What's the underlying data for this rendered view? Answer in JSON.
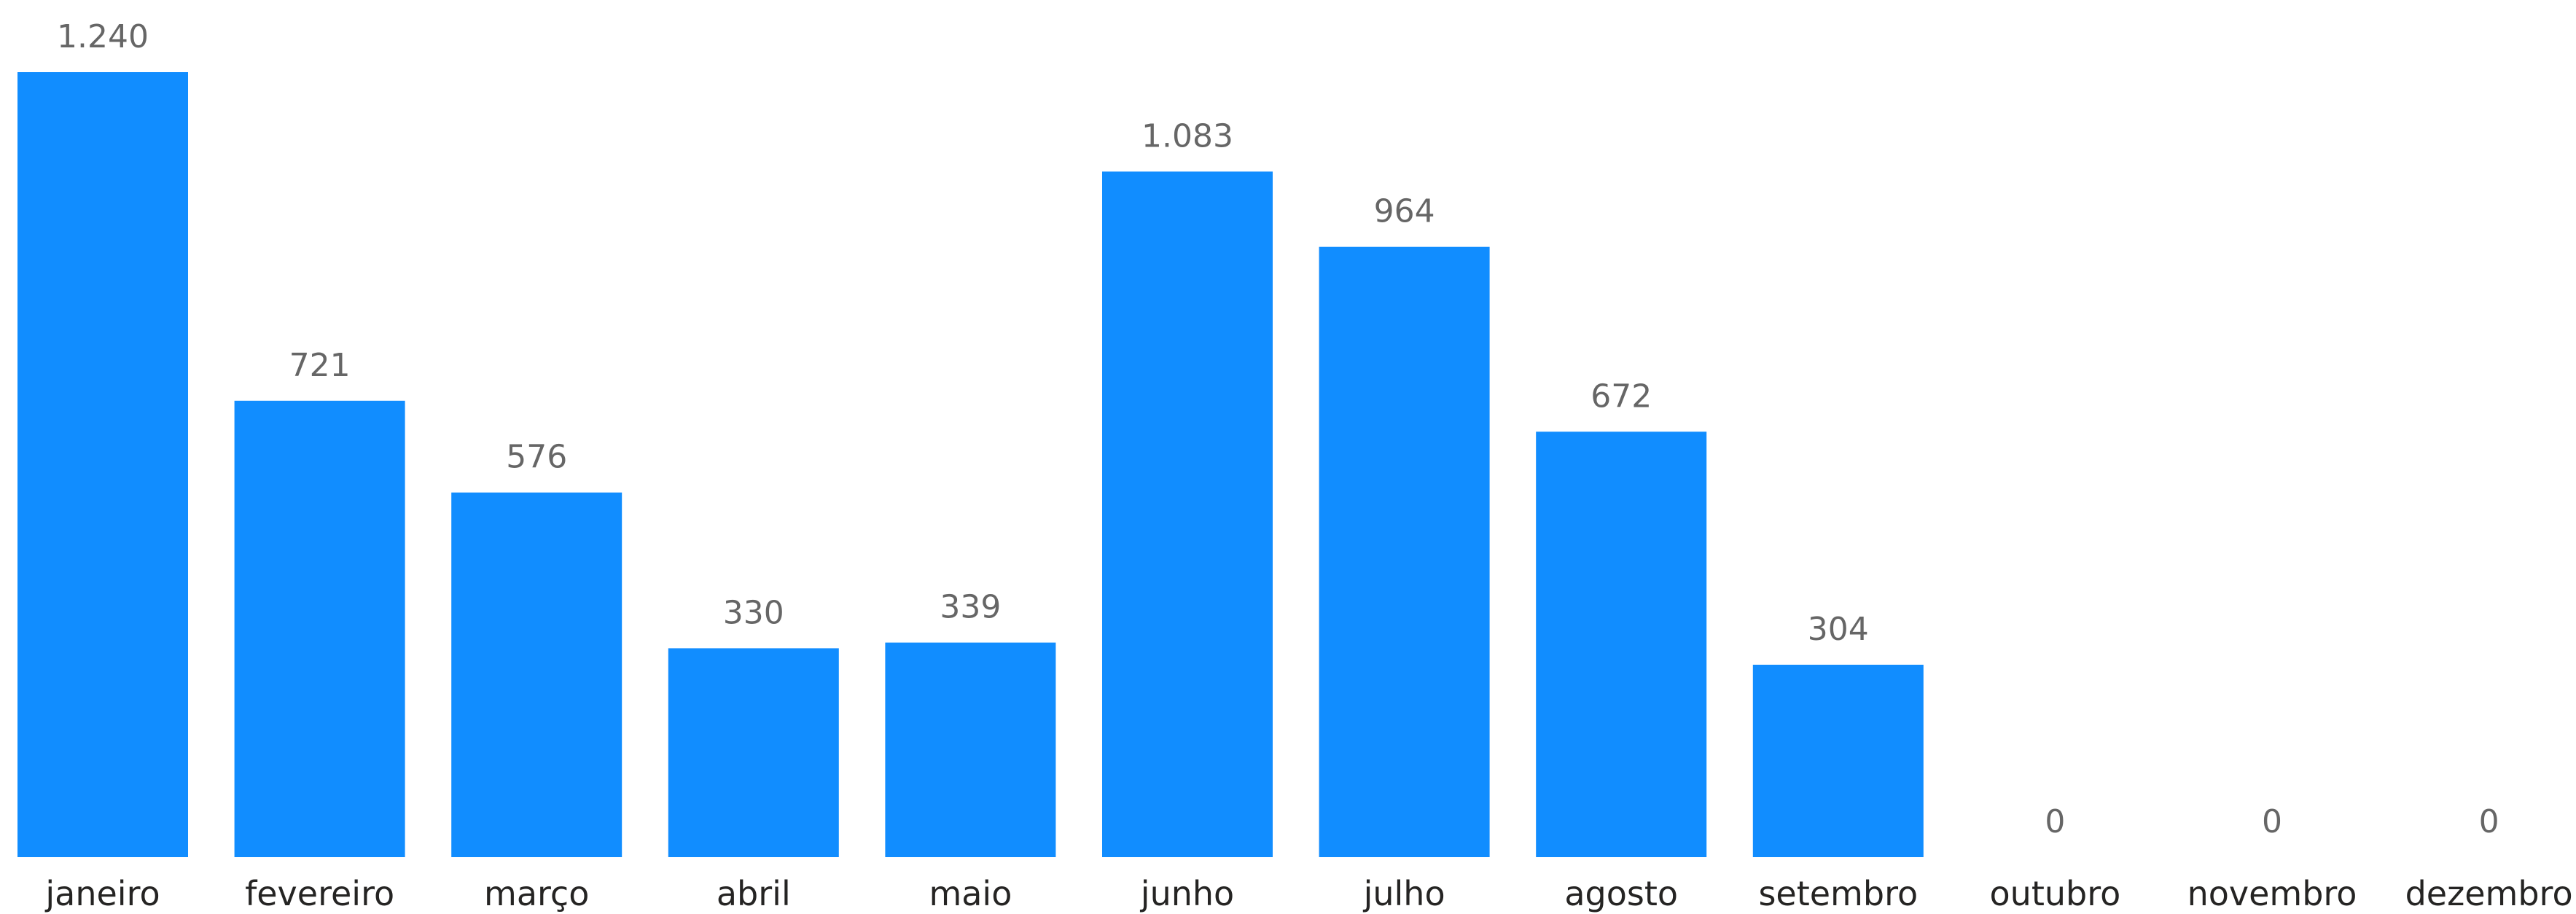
{
  "chart_data": {
    "type": "bar",
    "title": "",
    "xlabel": "",
    "ylabel": "",
    "categories": [
      "janeiro",
      "fevereiro",
      "março",
      "abril",
      "maio",
      "junho",
      "julho",
      "agosto",
      "setembro",
      "outubro",
      "novembro",
      "dezembro"
    ],
    "values": [
      1240,
      721,
      576,
      330,
      339,
      1083,
      964,
      672,
      304,
      0,
      0,
      0
    ],
    "data_labels": [
      "1.240",
      "721",
      "576",
      "330",
      "339",
      "1.083",
      "964",
      "672",
      "304",
      "0",
      "0",
      "0"
    ],
    "ylim": [
      0,
      1240
    ],
    "grid": false,
    "legend": "none",
    "bar_color": "#118DFF",
    "data_label_color": "#666666",
    "category_label_color": "#252423"
  }
}
